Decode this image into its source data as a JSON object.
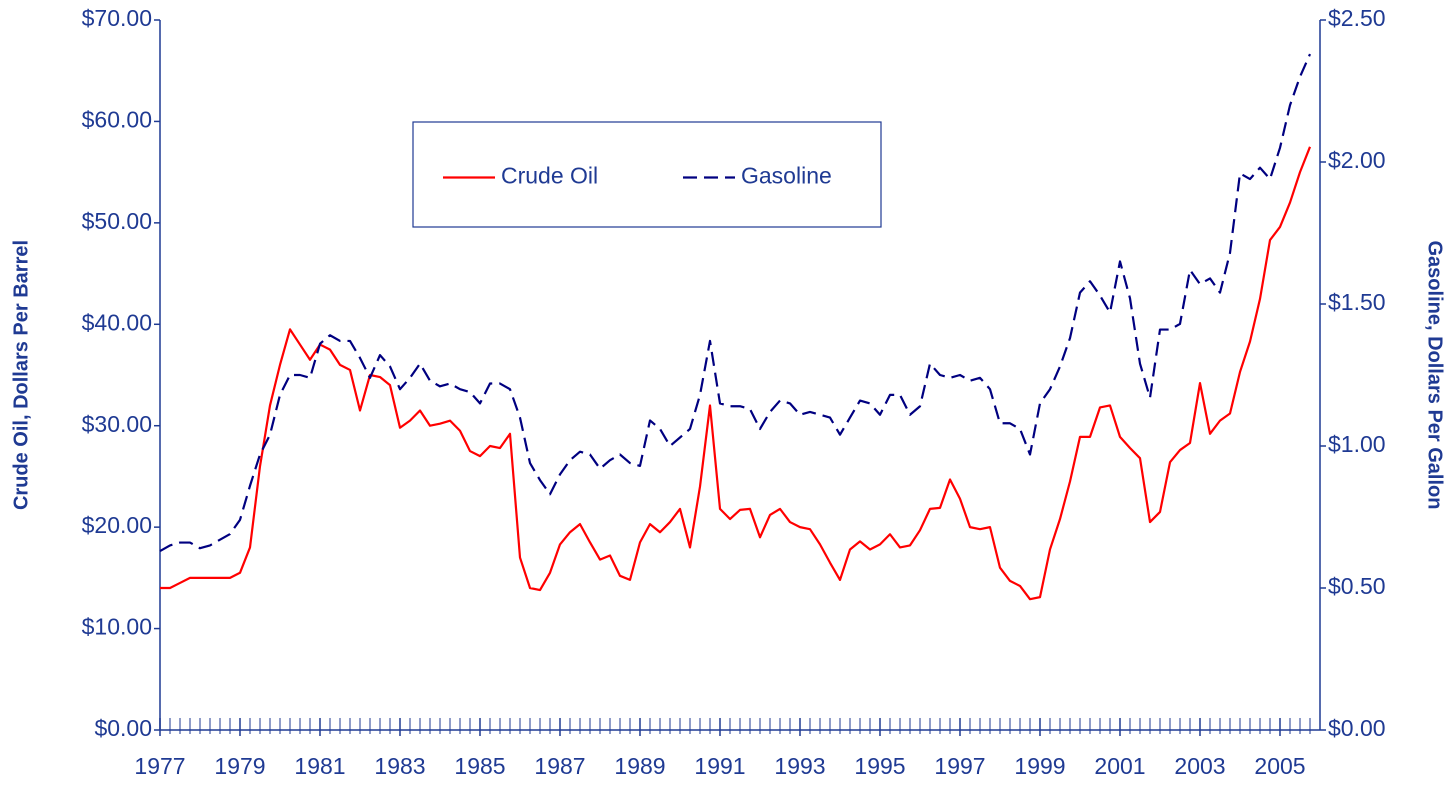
{
  "chart_data": {
    "type": "line",
    "x": [
      1977,
      1977.25,
      1977.5,
      1977.75,
      1978,
      1978.25,
      1978.5,
      1978.75,
      1979,
      1979.25,
      1979.5,
      1979.75,
      1980,
      1980.25,
      1980.5,
      1980.75,
      1981,
      1981.25,
      1981.5,
      1981.75,
      1982,
      1982.25,
      1982.5,
      1982.75,
      1983,
      1983.25,
      1983.5,
      1983.75,
      1984,
      1984.25,
      1984.5,
      1984.75,
      1985,
      1985.25,
      1985.5,
      1985.75,
      1986,
      1986.25,
      1986.5,
      1986.75,
      1987,
      1987.25,
      1987.5,
      1987.75,
      1988,
      1988.25,
      1988.5,
      1988.75,
      1989,
      1989.25,
      1989.5,
      1989.75,
      1990,
      1990.25,
      1990.5,
      1990.75,
      1991,
      1991.25,
      1991.5,
      1991.75,
      1992,
      1992.25,
      1992.5,
      1992.75,
      1993,
      1993.25,
      1993.5,
      1993.75,
      1994,
      1994.25,
      1994.5,
      1994.75,
      1995,
      1995.25,
      1995.5,
      1995.75,
      1996,
      1996.25,
      1996.5,
      1996.75,
      1997,
      1997.25,
      1997.5,
      1997.75,
      1998,
      1998.25,
      1998.5,
      1998.75,
      1999,
      1999.25,
      1999.5,
      1999.75,
      2000,
      2000.25,
      2000.5,
      2000.75,
      2001,
      2001.25,
      2001.5,
      2001.75,
      2002,
      2002.25,
      2002.5,
      2002.75,
      2003,
      2003.25,
      2003.5,
      2003.75,
      2004,
      2004.25,
      2004.5,
      2004.75,
      2005,
      2005.25,
      2005.5,
      2005.75
    ],
    "series": [
      {
        "name": "Crude Oil",
        "color": "#ff0000",
        "style": "solid",
        "values": [
          14,
          14,
          14.5,
          15,
          15,
          15,
          15,
          15,
          15.5,
          18,
          26,
          32,
          36,
          39.5,
          38,
          36.5,
          38,
          37.5,
          36,
          35.5,
          31.5,
          35,
          34.8,
          34,
          29.8,
          30.5,
          31.5,
          30,
          30.2,
          30.5,
          29.5,
          27.5,
          27,
          28,
          27.8,
          29.2,
          17,
          14,
          13.8,
          15.5,
          18.3,
          19.5,
          20.3,
          18.5,
          16.8,
          17.2,
          15.2,
          14.8,
          18.5,
          20.3,
          19.5,
          20.5,
          21.8,
          18,
          24,
          32,
          21.8,
          20.8,
          21.7,
          21.8,
          19,
          21.2,
          21.8,
          20.5,
          20,
          19.8,
          18.3,
          16.5,
          14.8,
          17.8,
          18.6,
          17.8,
          18.3,
          19.3,
          18,
          18.2,
          19.7,
          21.8,
          21.9,
          24.7,
          22.8,
          20,
          19.8,
          20,
          16,
          14.7,
          14.2,
          12.9,
          13.1,
          17.8,
          20.8,
          24.5,
          28.9,
          28.9,
          31.8,
          32,
          28.9,
          27.8,
          26.8,
          20.5,
          21.5,
          26.4,
          27.6,
          28.3,
          34.2,
          29.2,
          30.5,
          31.2,
          35.3,
          38.3,
          42.5,
          48.3,
          49.6,
          52,
          55,
          57.5
        ]
      },
      {
        "name": "Gasoline",
        "color": "#000080",
        "style": "dashed",
        "axis": "y2",
        "values": [
          0.63,
          0.65,
          0.66,
          0.66,
          0.64,
          0.65,
          0.67,
          0.69,
          0.74,
          0.86,
          0.97,
          1.04,
          1.18,
          1.25,
          1.25,
          1.24,
          1.36,
          1.39,
          1.37,
          1.37,
          1.31,
          1.24,
          1.32,
          1.28,
          1.2,
          1.24,
          1.29,
          1.23,
          1.21,
          1.22,
          1.2,
          1.19,
          1.15,
          1.22,
          1.22,
          1.2,
          1.1,
          0.94,
          0.88,
          0.83,
          0.9,
          0.95,
          0.98,
          0.97,
          0.92,
          0.95,
          0.97,
          0.94,
          0.93,
          1.09,
          1.06,
          1.0,
          1.03,
          1.06,
          1.18,
          1.37,
          1.15,
          1.14,
          1.14,
          1.13,
          1.06,
          1.12,
          1.16,
          1.15,
          1.11,
          1.12,
          1.11,
          1.1,
          1.04,
          1.1,
          1.16,
          1.15,
          1.11,
          1.18,
          1.18,
          1.11,
          1.14,
          1.29,
          1.25,
          1.24,
          1.25,
          1.23,
          1.24,
          1.2,
          1.08,
          1.08,
          1.06,
          0.97,
          1.15,
          1.2,
          1.28,
          1.38,
          1.54,
          1.58,
          1.53,
          1.47,
          1.65,
          1.52,
          1.29,
          1.17,
          1.41,
          1.41,
          1.43,
          1.62,
          1.57,
          1.59,
          1.54,
          1.68,
          1.96,
          1.94,
          1.98,
          1.94,
          2.05,
          2.2,
          2.3,
          2.38
        ]
      }
    ],
    "xlim": [
      1977,
      2006
    ],
    "xticks": [
      1977,
      1979,
      1981,
      1983,
      1985,
      1987,
      1989,
      1991,
      1993,
      1995,
      1997,
      1999,
      2001,
      2003,
      2005
    ],
    "ylim": [
      0,
      70
    ],
    "yticks": [
      {
        "value": 0,
        "label": "$0.00"
      },
      {
        "value": 10,
        "label": "$10.00"
      },
      {
        "value": 20,
        "label": "$20.00"
      },
      {
        "value": 30,
        "label": "$30.00"
      },
      {
        "value": 40,
        "label": "$40.00"
      },
      {
        "value": 50,
        "label": "$50.00"
      },
      {
        "value": 60,
        "label": "$60.00"
      },
      {
        "value": 70,
        "label": "$70.00"
      }
    ],
    "y2lim": [
      0,
      2.5
    ],
    "y2ticks": [
      {
        "value": 0,
        "label": "$0.00"
      },
      {
        "value": 0.5,
        "label": "$0.50"
      },
      {
        "value": 1,
        "label": "$1.00"
      },
      {
        "value": 1.5,
        "label": "$1.50"
      },
      {
        "value": 2,
        "label": "$2.00"
      },
      {
        "value": 2.5,
        "label": "$2.50"
      }
    ],
    "ylabel": "Crude Oil, Dollars Per Barrel",
    "y2label": "Gasoline, Dollars Per Gallon",
    "legend": "upper center",
    "grid": false
  }
}
